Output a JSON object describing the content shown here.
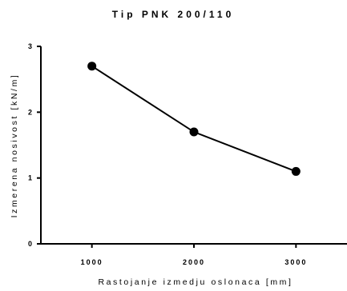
{
  "chart_data": {
    "type": "line",
    "title": "Tip PNK 200/110",
    "xlabel": "Rastojanje izmedju oslonaca [mm]",
    "ylabel": "Izmerena nosivost [kN/m]",
    "x": [
      1000,
      2000,
      3000
    ],
    "values": [
      2.7,
      1.7,
      1.1
    ],
    "xlim": [
      500,
      3500
    ],
    "ylim": [
      0,
      3
    ],
    "xticks": [
      "1000",
      "2000",
      "3000"
    ],
    "yticks": [
      "0",
      "1",
      "2",
      "3"
    ],
    "grid": false,
    "legend": "none",
    "line_color": "#000000",
    "marker": "circle"
  }
}
